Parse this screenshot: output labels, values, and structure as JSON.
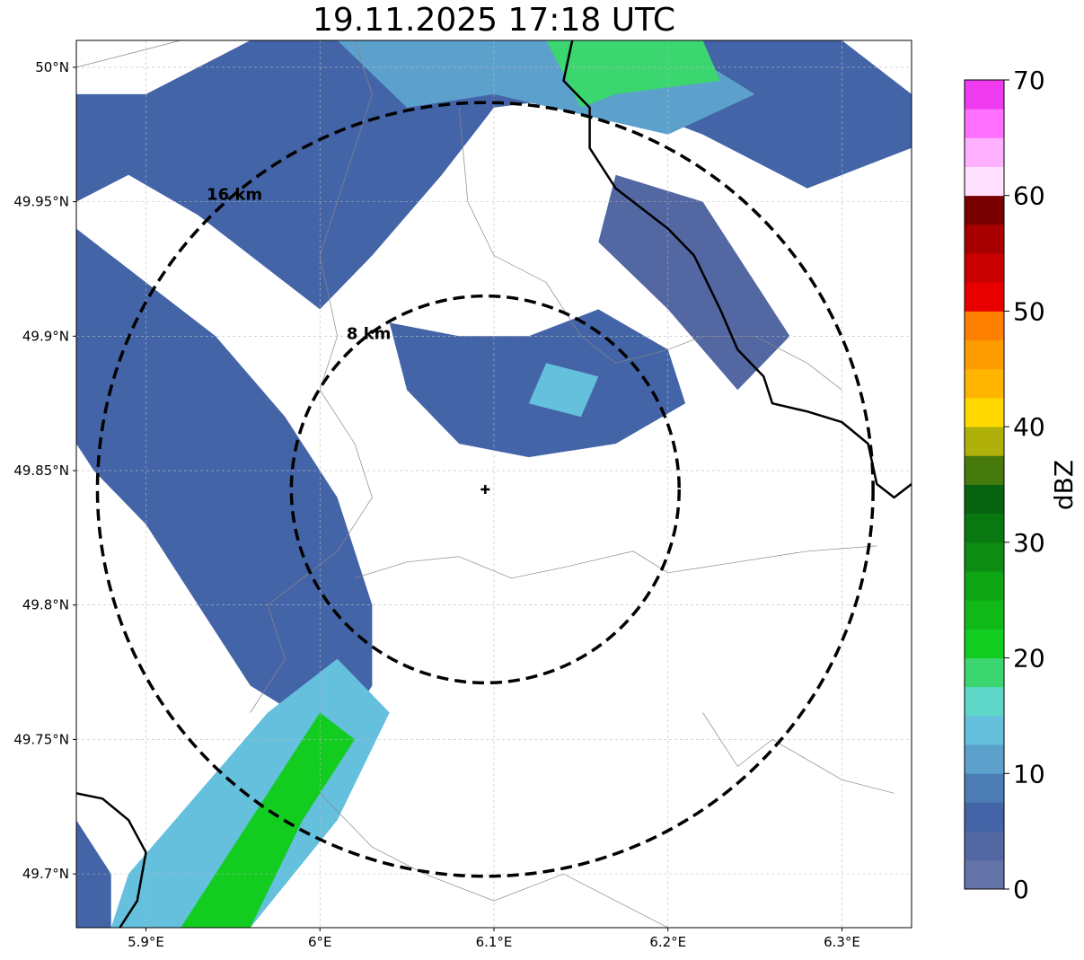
{
  "title": "19.11.2025 17:18 UTC",
  "map": {
    "lon_range": [
      5.86,
      6.34
    ],
    "lat_range": [
      49.68,
      50.01
    ],
    "lon_ticks": [
      {
        "value": 5.9,
        "label": "5.9°E"
      },
      {
        "value": 6.0,
        "label": "6°E"
      },
      {
        "value": 6.1,
        "label": "6.1°E"
      },
      {
        "value": 6.2,
        "label": "6.2°E"
      },
      {
        "value": 6.3,
        "label": "6.3°E"
      }
    ],
    "lat_ticks": [
      {
        "value": 50.0,
        "label": "50°N"
      },
      {
        "value": 49.95,
        "label": "49.95°N"
      },
      {
        "value": 49.9,
        "label": "49.9°N"
      },
      {
        "value": 49.85,
        "label": "49.85°N"
      },
      {
        "value": 49.8,
        "label": "49.8°N"
      },
      {
        "value": 49.75,
        "label": "49.75°N"
      },
      {
        "value": 49.7,
        "label": "49.7°N"
      }
    ],
    "radar_site": {
      "lon": 6.095,
      "lat": 49.843
    },
    "range_rings": [
      {
        "radius_km": 8,
        "label": "8 km"
      },
      {
        "radius_km": 16,
        "label": "16 km"
      }
    ]
  },
  "colorbar": {
    "label": "dBZ",
    "min": 0,
    "max": 70,
    "ticks": [
      {
        "value": 0,
        "label": "0"
      },
      {
        "value": 10,
        "label": "10"
      },
      {
        "value": 20,
        "label": "20"
      },
      {
        "value": 30,
        "label": "30"
      },
      {
        "value": 40,
        "label": "40"
      },
      {
        "value": 50,
        "label": "50"
      },
      {
        "value": 60,
        "label": "60"
      },
      {
        "value": 70,
        "label": "70"
      }
    ],
    "colors": [
      "#6474a8",
      "#5367a2",
      "#4464a8",
      "#4b7db4",
      "#5ca0cc",
      "#64c0dc",
      "#5ed6c8",
      "#3cd670",
      "#12cc20",
      "#10b818",
      "#0ea614",
      "#0c8c12",
      "#0a7810",
      "#086410",
      "#467a0c",
      "#b0b00a",
      "#ffd800",
      "#ffb400",
      "#ff9c00",
      "#ff8000",
      "#e80000",
      "#c80000",
      "#a80000",
      "#780000",
      "#ffe0ff",
      "#ffb0ff",
      "#ff70ff",
      "#f03cf0"
    ]
  },
  "reflectivity_areas": [
    {
      "name": "northern-band",
      "dbz": 5,
      "poly": [
        [
          5.99,
          50.01
        ],
        [
          6.3,
          50.01
        ],
        [
          6.34,
          49.99
        ],
        [
          6.34,
          49.97
        ],
        [
          6.28,
          49.955
        ],
        [
          6.22,
          49.975
        ],
        [
          6.16,
          49.99
        ],
        [
          6.1,
          49.985
        ],
        [
          6.07,
          49.96
        ],
        [
          6.03,
          49.93
        ],
        [
          6.0,
          49.91
        ],
        [
          5.97,
          49.925
        ],
        [
          5.93,
          49.945
        ],
        [
          5.89,
          49.96
        ],
        [
          5.86,
          49.95
        ],
        [
          5.86,
          49.99
        ],
        [
          5.9,
          49.99
        ],
        [
          5.96,
          50.01
        ]
      ]
    },
    {
      "name": "northern-band-core",
      "dbz": 12,
      "poly": [
        [
          6.01,
          50.01
        ],
        [
          6.2,
          50.01
        ],
        [
          6.25,
          49.99
        ],
        [
          6.2,
          49.975
        ],
        [
          6.1,
          49.99
        ],
        [
          6.05,
          49.985
        ]
      ]
    },
    {
      "name": "northern-band-green",
      "dbz": 19,
      "poly": [
        [
          6.13,
          50.01
        ],
        [
          6.22,
          50.01
        ],
        [
          6.23,
          49.995
        ],
        [
          6.17,
          49.99
        ],
        [
          6.15,
          49.985
        ]
      ]
    },
    {
      "name": "northeast-extension",
      "dbz": 4,
      "poly": [
        [
          6.17,
          49.96
        ],
        [
          6.22,
          49.95
        ],
        [
          6.27,
          49.9
        ],
        [
          6.24,
          49.88
        ],
        [
          6.2,
          49.91
        ],
        [
          6.16,
          49.935
        ]
      ]
    },
    {
      "name": "central-cell",
      "dbz": 6,
      "poly": [
        [
          6.04,
          49.905
        ],
        [
          6.08,
          49.9
        ],
        [
          6.12,
          49.9
        ],
        [
          6.16,
          49.91
        ],
        [
          6.2,
          49.895
        ],
        [
          6.21,
          49.875
        ],
        [
          6.17,
          49.86
        ],
        [
          6.12,
          49.855
        ],
        [
          6.08,
          49.86
        ],
        [
          6.05,
          49.88
        ]
      ]
    },
    {
      "name": "central-cell-core",
      "dbz": 13,
      "poly": [
        [
          6.13,
          49.89
        ],
        [
          6.16,
          49.885
        ],
        [
          6.15,
          49.87
        ],
        [
          6.12,
          49.875
        ]
      ]
    },
    {
      "name": "west-band",
      "dbz": 5,
      "poly": [
        [
          5.86,
          49.94
        ],
        [
          5.9,
          49.92
        ],
        [
          5.94,
          49.9
        ],
        [
          5.98,
          49.87
        ],
        [
          6.01,
          49.84
        ],
        [
          6.03,
          49.8
        ],
        [
          6.03,
          49.77
        ],
        [
          6.01,
          49.75
        ],
        [
          5.96,
          49.77
        ],
        [
          5.93,
          49.8
        ],
        [
          5.9,
          49.83
        ],
        [
          5.87,
          49.85
        ],
        [
          5.86,
          49.86
        ]
      ]
    },
    {
      "name": "southwest-band",
      "dbz": 14,
      "poly": [
        [
          5.88,
          49.68
        ],
        [
          5.96,
          49.68
        ],
        [
          6.01,
          49.72
        ],
        [
          6.04,
          49.76
        ],
        [
          6.01,
          49.78
        ],
        [
          5.97,
          49.76
        ],
        [
          5.93,
          49.73
        ],
        [
          5.89,
          49.7
        ]
      ]
    },
    {
      "name": "southwest-band-green",
      "dbz": 20,
      "poly": [
        [
          5.92,
          49.68
        ],
        [
          5.96,
          49.68
        ],
        [
          5.99,
          49.72
        ],
        [
          6.02,
          49.75
        ],
        [
          6.0,
          49.76
        ],
        [
          5.97,
          49.73
        ],
        [
          5.94,
          49.7
        ]
      ]
    },
    {
      "name": "southwest-corner",
      "dbz": 5,
      "poly": [
        [
          5.86,
          49.72
        ],
        [
          5.88,
          49.7
        ],
        [
          5.88,
          49.68
        ],
        [
          5.86,
          49.68
        ]
      ]
    }
  ],
  "borders": {
    "country": [
      [
        [
          6.145,
          50.01
        ],
        [
          6.14,
          49.995
        ],
        [
          6.155,
          49.985
        ],
        [
          6.155,
          49.97
        ],
        [
          6.17,
          49.955
        ],
        [
          6.2,
          49.94
        ],
        [
          6.215,
          49.93
        ],
        [
          6.23,
          49.91
        ],
        [
          6.24,
          49.895
        ],
        [
          6.255,
          49.885
        ],
        [
          6.26,
          49.875
        ],
        [
          6.28,
          49.872
        ],
        [
          6.3,
          49.868
        ],
        [
          6.315,
          49.86
        ],
        [
          6.32,
          49.845
        ],
        [
          6.33,
          49.84
        ],
        [
          6.34,
          49.845
        ]
      ],
      [
        [
          5.86,
          49.73
        ],
        [
          5.875,
          49.728
        ],
        [
          5.89,
          49.72
        ],
        [
          5.9,
          49.708
        ],
        [
          5.895,
          49.69
        ],
        [
          5.885,
          49.68
        ]
      ]
    ],
    "regional": [
      [
        [
          5.86,
          50.0
        ],
        [
          5.89,
          50.005
        ],
        [
          5.92,
          50.01
        ]
      ],
      [
        [
          6.02,
          50.01
        ],
        [
          6.03,
          49.99
        ],
        [
          6.02,
          49.97
        ],
        [
          6.01,
          49.95
        ],
        [
          6.0,
          49.93
        ],
        [
          6.01,
          49.9
        ],
        [
          6.0,
          49.88
        ],
        [
          6.02,
          49.86
        ],
        [
          6.03,
          49.84
        ],
        [
          6.01,
          49.82
        ],
        [
          5.99,
          49.81
        ],
        [
          5.97,
          49.8
        ],
        [
          5.98,
          49.78
        ],
        [
          5.96,
          49.76
        ]
      ],
      [
        [
          6.02,
          49.81
        ],
        [
          6.05,
          49.816
        ],
        [
          6.08,
          49.818
        ],
        [
          6.11,
          49.81
        ],
        [
          6.14,
          49.814
        ],
        [
          6.18,
          49.82
        ],
        [
          6.2,
          49.812
        ],
        [
          6.24,
          49.816
        ],
        [
          6.28,
          49.82
        ],
        [
          6.32,
          49.822
        ]
      ],
      [
        [
          6.08,
          49.985
        ],
        [
          6.085,
          49.95
        ],
        [
          6.1,
          49.93
        ],
        [
          6.13,
          49.92
        ],
        [
          6.15,
          49.9
        ],
        [
          6.17,
          49.89
        ],
        [
          6.2,
          49.895
        ],
        [
          6.22,
          49.9
        ],
        [
          6.25,
          49.9
        ],
        [
          6.28,
          49.89
        ],
        [
          6.3,
          49.88
        ]
      ],
      [
        [
          6.22,
          49.76
        ],
        [
          6.24,
          49.74
        ],
        [
          6.26,
          49.75
        ],
        [
          6.3,
          49.735
        ],
        [
          6.33,
          49.73
        ]
      ],
      [
        [
          6.0,
          49.73
        ],
        [
          6.03,
          49.71
        ],
        [
          6.06,
          49.7
        ],
        [
          6.1,
          49.69
        ],
        [
          6.14,
          49.7
        ],
        [
          6.17,
          49.69
        ],
        [
          6.2,
          49.68
        ]
      ]
    ]
  }
}
